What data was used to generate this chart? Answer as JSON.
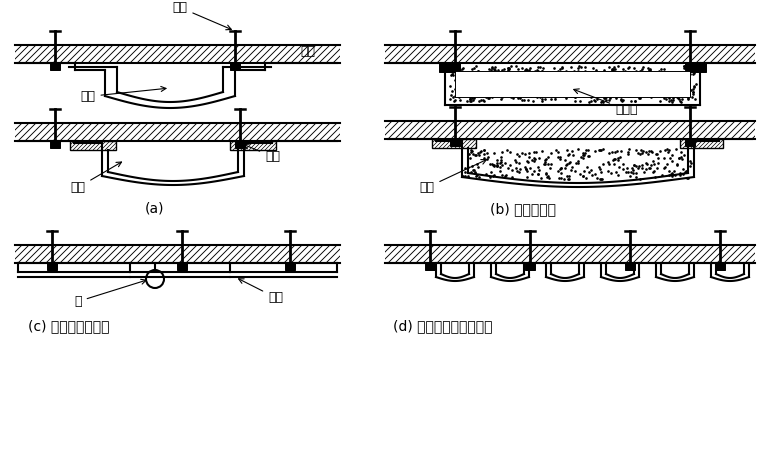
{
  "bg_color": "#ffffff",
  "line_color": "#000000",
  "labels": {
    "anchor_bolt": "锚栓",
    "lining": "衬砌",
    "pipe": "管材",
    "board": "板材",
    "clamp": "夹具",
    "insulation": "隔热材",
    "tube": "管",
    "beam": "槽材",
    "caption_a": "(a)",
    "caption_b": "(b) 使用隔热材",
    "caption_c": "(c) 管内可能清扫者",
    "caption_d": "(d) 管并列呈面状导水者"
  },
  "fig_width": 7.6,
  "fig_height": 4.63,
  "dpi": 100
}
